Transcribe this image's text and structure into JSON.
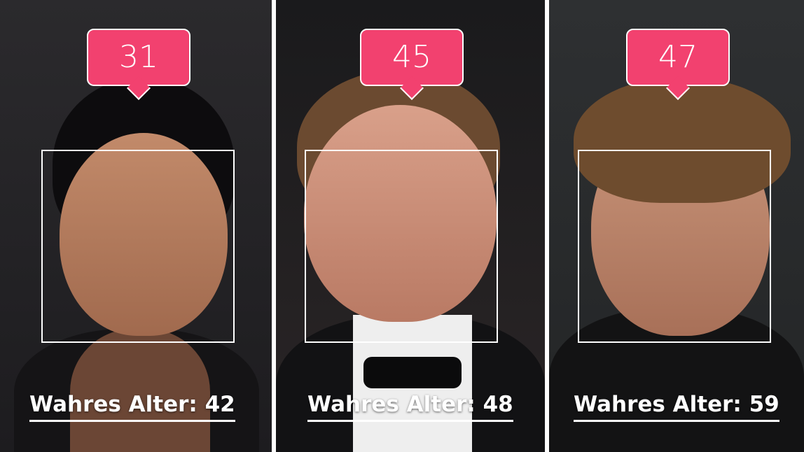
{
  "colors": {
    "badge": "#f2416f",
    "divider": "#ffffff"
  },
  "panels": [
    {
      "estimated_age": "31",
      "true_age_label": "Wahres Alter: 42"
    },
    {
      "estimated_age": "45",
      "true_age_label": "Wahres Alter: 48"
    },
    {
      "estimated_age": "47",
      "true_age_label": "Wahres Alter: 59"
    }
  ]
}
